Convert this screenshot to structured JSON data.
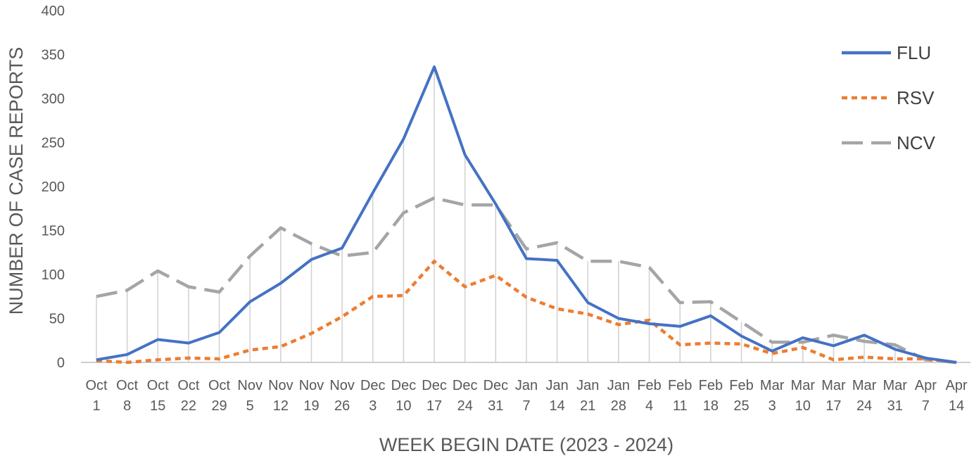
{
  "chart_data": {
    "type": "line",
    "xlabel": "WEEK BEGIN DATE (2023 - 2024)",
    "ylabel": "NUMBER OF CASE REPORTS",
    "ylim": [
      0,
      400
    ],
    "yticks": [
      0,
      50,
      100,
      150,
      200,
      250,
      300,
      350,
      400
    ],
    "grid": "vertical drop lines at each category",
    "legend_position": "top-right",
    "categories": [
      {
        "month": "Oct",
        "day": "1"
      },
      {
        "month": "Oct",
        "day": "8"
      },
      {
        "month": "Oct",
        "day": "15"
      },
      {
        "month": "Oct",
        "day": "22"
      },
      {
        "month": "Oct",
        "day": "29"
      },
      {
        "month": "Nov",
        "day": "5"
      },
      {
        "month": "Nov",
        "day": "12"
      },
      {
        "month": "Nov",
        "day": "19"
      },
      {
        "month": "Nov",
        "day": "26"
      },
      {
        "month": "Dec",
        "day": "3"
      },
      {
        "month": "Dec",
        "day": "10"
      },
      {
        "month": "Dec",
        "day": "17"
      },
      {
        "month": "Dec",
        "day": "24"
      },
      {
        "month": "Dec",
        "day": "31"
      },
      {
        "month": "Jan",
        "day": "7"
      },
      {
        "month": "Jan",
        "day": "14"
      },
      {
        "month": "Jan",
        "day": "21"
      },
      {
        "month": "Jan",
        "day": "28"
      },
      {
        "month": "Feb",
        "day": "4"
      },
      {
        "month": "Feb",
        "day": "11"
      },
      {
        "month": "Feb",
        "day": "18"
      },
      {
        "month": "Feb",
        "day": "25"
      },
      {
        "month": "Mar",
        "day": "3"
      },
      {
        "month": "Mar",
        "day": "10"
      },
      {
        "month": "Mar",
        "day": "17"
      },
      {
        "month": "Mar",
        "day": "24"
      },
      {
        "month": "Mar",
        "day": "31"
      },
      {
        "month": "Apr",
        "day": "7"
      },
      {
        "month": "Apr",
        "day": "14"
      }
    ],
    "series": [
      {
        "name": "FLU",
        "color": "#4472C4",
        "dash": "solid",
        "values": [
          3,
          9,
          26,
          22,
          34,
          69,
          90,
          117,
          130,
          193,
          254,
          336,
          236,
          180,
          118,
          116,
          68,
          50,
          44,
          41,
          53,
          30,
          13,
          28,
          19,
          31,
          15,
          5,
          0
        ]
      },
      {
        "name": "RSV",
        "color": "#ED7D31",
        "dash": "dotted",
        "values": [
          2,
          0,
          3,
          5,
          4,
          14,
          18,
          33,
          52,
          75,
          76,
          115,
          86,
          99,
          74,
          61,
          55,
          43,
          48,
          20,
          22,
          21,
          10,
          17,
          3,
          6,
          4,
          4,
          0
        ]
      },
      {
        "name": "NCV",
        "color": "#A5A5A5",
        "dash": "dashed",
        "values": [
          75,
          82,
          104,
          86,
          80,
          121,
          153,
          135,
          121,
          125,
          170,
          187,
          179,
          179,
          129,
          136,
          115,
          115,
          108,
          68,
          69,
          46,
          23,
          23,
          31,
          24,
          20,
          3,
          0
        ]
      }
    ]
  }
}
